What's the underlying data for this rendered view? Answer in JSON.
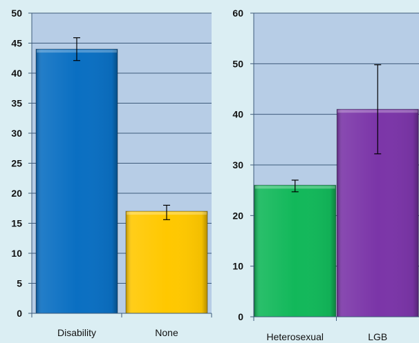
{
  "chart_data": [
    {
      "type": "bar",
      "categories": [
        "Disability",
        "None"
      ],
      "values": [
        44,
        17
      ],
      "error_low": [
        42.1,
        15.6
      ],
      "error_high": [
        45.9,
        18.0
      ],
      "ylim": [
        0,
        50
      ],
      "yticks": [
        "0",
        "5",
        "10",
        "15",
        "20",
        "25",
        "30",
        "35",
        "40",
        "45",
        "50"
      ],
      "grid": true,
      "colors": [
        "#0a6fc2",
        "#ffc800"
      ]
    },
    {
      "type": "bar",
      "categories": [
        "Heterosexual",
        "LGB"
      ],
      "values": [
        26,
        41
      ],
      "error_low": [
        24.7,
        32.2
      ],
      "error_high": [
        27.0,
        49.8
      ],
      "ylim": [
        0,
        60
      ],
      "yticks": [
        "0",
        "10",
        "20",
        "30",
        "40",
        "50",
        "60"
      ],
      "grid": true,
      "colors": [
        "#12b85a",
        "#7b35a8"
      ]
    }
  ]
}
